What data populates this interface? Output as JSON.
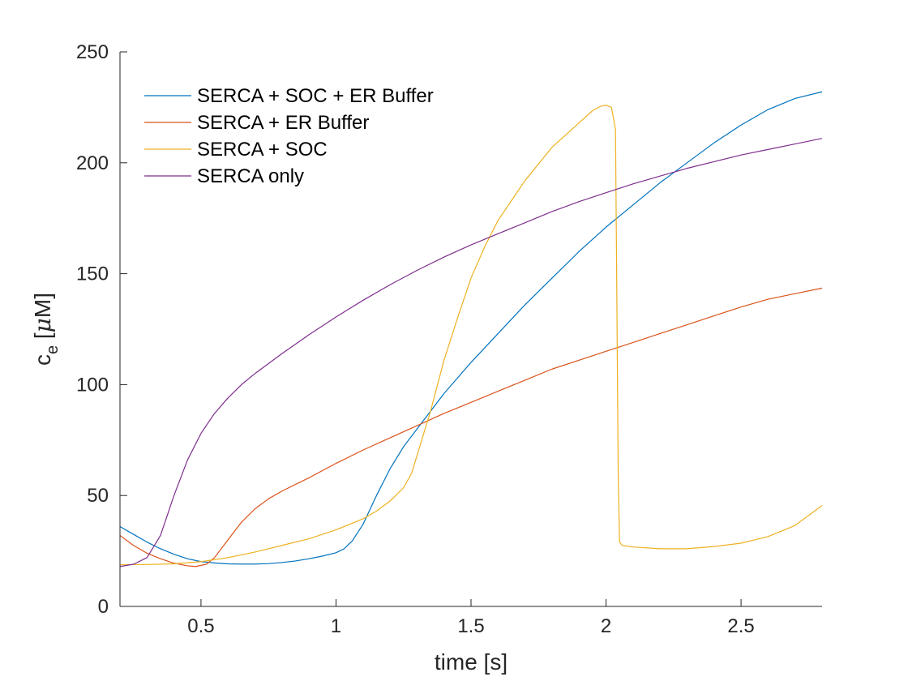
{
  "chart_data": {
    "type": "line",
    "xlabel": "time [s]",
    "ylabel": {
      "base": "c",
      "subscript": "e",
      "unit_open": " [",
      "unit_mu": "μ",
      "unit_rest": "M]"
    },
    "xlim": [
      0.2,
      2.8
    ],
    "ylim": [
      0,
      250
    ],
    "xticks": [
      0.5,
      1,
      1.5,
      2,
      2.5
    ],
    "xtick_labels": [
      "0.5",
      "1",
      "1.5",
      "2",
      "2.5"
    ],
    "yticks": [
      0,
      50,
      100,
      150,
      200,
      250
    ],
    "ytick_labels": [
      "0",
      "50",
      "100",
      "150",
      "200",
      "250"
    ],
    "grid": false,
    "legend_position": "top-left",
    "series": [
      {
        "name": "SERCA + SOC + ER Buffer",
        "color": "#0072BD",
        "points": [
          [
            0.2,
            36
          ],
          [
            0.25,
            32.5
          ],
          [
            0.3,
            29
          ],
          [
            0.35,
            26
          ],
          [
            0.4,
            23.5
          ],
          [
            0.45,
            21.5
          ],
          [
            0.5,
            20.2
          ],
          [
            0.55,
            19.6
          ],
          [
            0.6,
            19.2
          ],
          [
            0.65,
            19.1
          ],
          [
            0.7,
            19.1
          ],
          [
            0.75,
            19.3
          ],
          [
            0.8,
            19.8
          ],
          [
            0.85,
            20.5
          ],
          [
            0.9,
            21.5
          ],
          [
            0.95,
            22.7
          ],
          [
            1.0,
            24.2
          ],
          [
            1.03,
            26
          ],
          [
            1.06,
            29.5
          ],
          [
            1.1,
            37
          ],
          [
            1.15,
            50
          ],
          [
            1.2,
            62
          ],
          [
            1.25,
            72
          ],
          [
            1.3,
            80
          ],
          [
            1.35,
            88
          ],
          [
            1.4,
            96
          ],
          [
            1.5,
            110
          ],
          [
            1.6,
            123
          ],
          [
            1.7,
            136
          ],
          [
            1.8,
            148
          ],
          [
            1.9,
            160
          ],
          [
            2.0,
            171
          ],
          [
            2.1,
            181
          ],
          [
            2.2,
            191
          ],
          [
            2.3,
            200
          ],
          [
            2.4,
            209
          ],
          [
            2.5,
            217
          ],
          [
            2.6,
            224
          ],
          [
            2.7,
            229
          ],
          [
            2.8,
            232
          ]
        ]
      },
      {
        "name": "SERCA + ER Buffer",
        "color": "#D95319",
        "points": [
          [
            0.2,
            32
          ],
          [
            0.25,
            27.5
          ],
          [
            0.3,
            24
          ],
          [
            0.35,
            21.5
          ],
          [
            0.4,
            19.5
          ],
          [
            0.45,
            18.3
          ],
          [
            0.48,
            18
          ],
          [
            0.52,
            19
          ],
          [
            0.55,
            22
          ],
          [
            0.6,
            30
          ],
          [
            0.65,
            38
          ],
          [
            0.7,
            44
          ],
          [
            0.75,
            48.5
          ],
          [
            0.8,
            52
          ],
          [
            0.9,
            58
          ],
          [
            1.0,
            64.5
          ],
          [
            1.1,
            70.5
          ],
          [
            1.2,
            76
          ],
          [
            1.3,
            81.5
          ],
          [
            1.4,
            87
          ],
          [
            1.5,
            92
          ],
          [
            1.6,
            97
          ],
          [
            1.7,
            102
          ],
          [
            1.8,
            107
          ],
          [
            1.9,
            111
          ],
          [
            2.0,
            115
          ],
          [
            2.1,
            119
          ],
          [
            2.2,
            123
          ],
          [
            2.3,
            127
          ],
          [
            2.4,
            131
          ],
          [
            2.5,
            135
          ],
          [
            2.6,
            138.5
          ],
          [
            2.7,
            141
          ],
          [
            2.8,
            143.5
          ]
        ]
      },
      {
        "name": "SERCA + SOC",
        "color": "#EDB120",
        "points": [
          [
            0.2,
            18.8
          ],
          [
            0.3,
            18.9
          ],
          [
            0.4,
            19.2
          ],
          [
            0.5,
            20.2
          ],
          [
            0.6,
            22
          ],
          [
            0.7,
            24.5
          ],
          [
            0.8,
            27.5
          ],
          [
            0.9,
            30.5
          ],
          [
            1.0,
            34.5
          ],
          [
            1.1,
            39.5
          ],
          [
            1.15,
            43
          ],
          [
            1.2,
            47.5
          ],
          [
            1.25,
            53.5
          ],
          [
            1.28,
            60
          ],
          [
            1.3,
            68
          ],
          [
            1.35,
            88
          ],
          [
            1.4,
            111
          ],
          [
            1.45,
            130
          ],
          [
            1.5,
            148
          ],
          [
            1.55,
            162
          ],
          [
            1.6,
            174
          ],
          [
            1.7,
            192
          ],
          [
            1.8,
            207
          ],
          [
            1.9,
            218
          ],
          [
            1.95,
            223.5
          ],
          [
            1.98,
            225.5
          ],
          [
            2.0,
            226
          ],
          [
            2.02,
            225
          ],
          [
            2.035,
            215
          ],
          [
            2.04,
            140
          ],
          [
            2.045,
            60
          ],
          [
            2.05,
            29
          ],
          [
            2.06,
            27.5
          ],
          [
            2.1,
            26.8
          ],
          [
            2.2,
            26
          ],
          [
            2.3,
            26
          ],
          [
            2.4,
            27
          ],
          [
            2.5,
            28.5
          ],
          [
            2.6,
            31.5
          ],
          [
            2.7,
            36.5
          ],
          [
            2.8,
            45.5
          ]
        ]
      },
      {
        "name": "SERCA only",
        "color": "#7E2F8E",
        "points": [
          [
            0.2,
            18
          ],
          [
            0.25,
            19
          ],
          [
            0.3,
            22
          ],
          [
            0.35,
            32
          ],
          [
            0.4,
            50
          ],
          [
            0.45,
            66
          ],
          [
            0.5,
            78
          ],
          [
            0.55,
            87
          ],
          [
            0.6,
            94
          ],
          [
            0.65,
            100
          ],
          [
            0.7,
            105
          ],
          [
            0.8,
            114
          ],
          [
            0.9,
            122.5
          ],
          [
            1.0,
            130.5
          ],
          [
            1.1,
            138
          ],
          [
            1.2,
            145
          ],
          [
            1.3,
            151.5
          ],
          [
            1.4,
            157.5
          ],
          [
            1.5,
            163
          ],
          [
            1.6,
            168
          ],
          [
            1.7,
            173
          ],
          [
            1.8,
            178
          ],
          [
            1.9,
            182.5
          ],
          [
            2.0,
            186.5
          ],
          [
            2.1,
            190.5
          ],
          [
            2.2,
            194
          ],
          [
            2.3,
            197.5
          ],
          [
            2.4,
            200.5
          ],
          [
            2.5,
            203.5
          ],
          [
            2.6,
            206
          ],
          [
            2.7,
            208.5
          ],
          [
            2.8,
            211
          ]
        ]
      }
    ]
  }
}
